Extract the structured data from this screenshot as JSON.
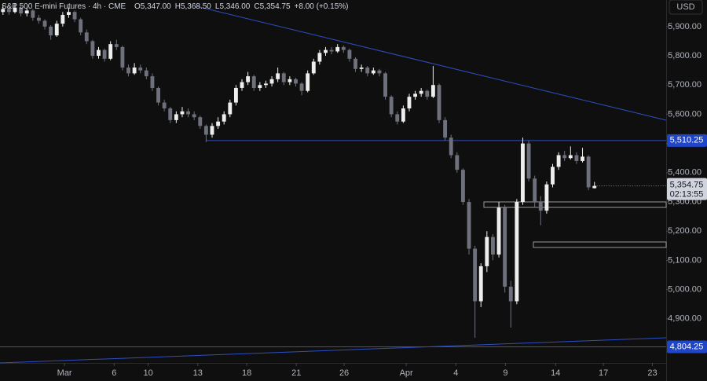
{
  "chart_data": {
    "type": "candlestick",
    "title": "S&P 500 E-mini Futures · 4h · CME",
    "ohlc_header": [
      {
        "key": "O",
        "text": "5,347.00"
      },
      {
        "key": "H",
        "text": "5,368.50"
      },
      {
        "key": "L",
        "text": "5,346.00"
      },
      {
        "key": "C",
        "text": "5,354.75"
      }
    ],
    "change": "+8.00 (+0.15%)",
    "currency": "USD",
    "up_color": "#eeeeee",
    "down_color": "#6e717b",
    "candles": [
      [
        5950,
        5975,
        5940,
        5960
      ],
      [
        5960,
        5970,
        5940,
        5950
      ],
      [
        5950,
        5980,
        5945,
        5965
      ],
      [
        5965,
        5970,
        5935,
        5945
      ],
      [
        5945,
        5965,
        5935,
        5955
      ],
      [
        5955,
        5960,
        5920,
        5930
      ],
      [
        5930,
        5940,
        5910,
        5920
      ],
      [
        5920,
        5925,
        5890,
        5900
      ],
      [
        5900,
        5905,
        5855,
        5870
      ],
      [
        5870,
        5920,
        5865,
        5910
      ],
      [
        5910,
        5950,
        5900,
        5940
      ],
      [
        5940,
        5965,
        5930,
        5950
      ],
      [
        5950,
        5955,
        5915,
        5925
      ],
      [
        5925,
        5930,
        5870,
        5880
      ],
      [
        5880,
        5890,
        5840,
        5850
      ],
      [
        5850,
        5855,
        5790,
        5800
      ],
      [
        5800,
        5830,
        5790,
        5820
      ],
      [
        5820,
        5825,
        5780,
        5790
      ],
      [
        5790,
        5850,
        5785,
        5840
      ],
      [
        5840,
        5855,
        5820,
        5830
      ],
      [
        5830,
        5835,
        5750,
        5760
      ],
      [
        5760,
        5770,
        5730,
        5740
      ],
      [
        5740,
        5775,
        5735,
        5760
      ],
      [
        5760,
        5770,
        5740,
        5750
      ],
      [
        5750,
        5760,
        5720,
        5730
      ],
      [
        5730,
        5740,
        5680,
        5690
      ],
      [
        5690,
        5695,
        5630,
        5640
      ],
      [
        5640,
        5650,
        5610,
        5620
      ],
      [
        5620,
        5625,
        5570,
        5580
      ],
      [
        5580,
        5610,
        5570,
        5600
      ],
      [
        5600,
        5625,
        5590,
        5610
      ],
      [
        5610,
        5620,
        5590,
        5600
      ],
      [
        5600,
        5610,
        5580,
        5590
      ],
      [
        5590,
        5595,
        5550,
        5560
      ],
      [
        5560,
        5565,
        5505,
        5530
      ],
      [
        5530,
        5570,
        5520,
        5560
      ],
      [
        5560,
        5590,
        5550,
        5575
      ],
      [
        5575,
        5610,
        5565,
        5600
      ],
      [
        5600,
        5650,
        5590,
        5640
      ],
      [
        5640,
        5700,
        5630,
        5690
      ],
      [
        5690,
        5720,
        5680,
        5710
      ],
      [
        5710,
        5745,
        5700,
        5730
      ],
      [
        5730,
        5735,
        5680,
        5690
      ],
      [
        5690,
        5710,
        5680,
        5700
      ],
      [
        5700,
        5715,
        5690,
        5705
      ],
      [
        5705,
        5730,
        5695,
        5720
      ],
      [
        5720,
        5760,
        5710,
        5740
      ],
      [
        5740,
        5745,
        5700,
        5710
      ],
      [
        5710,
        5730,
        5700,
        5720
      ],
      [
        5720,
        5725,
        5695,
        5705
      ],
      [
        5705,
        5710,
        5665,
        5680
      ],
      [
        5680,
        5750,
        5675,
        5740
      ],
      [
        5740,
        5790,
        5735,
        5780
      ],
      [
        5780,
        5820,
        5770,
        5810
      ],
      [
        5810,
        5830,
        5800,
        5820
      ],
      [
        5820,
        5830,
        5805,
        5815
      ],
      [
        5815,
        5840,
        5810,
        5830
      ],
      [
        5830,
        5835,
        5810,
        5820
      ],
      [
        5820,
        5825,
        5780,
        5790
      ],
      [
        5790,
        5795,
        5745,
        5755
      ],
      [
        5755,
        5770,
        5745,
        5760
      ],
      [
        5760,
        5765,
        5730,
        5740
      ],
      [
        5740,
        5760,
        5735,
        5750
      ],
      [
        5750,
        5755,
        5730,
        5740
      ],
      [
        5740,
        5745,
        5650,
        5660
      ],
      [
        5660,
        5665,
        5590,
        5600
      ],
      [
        5600,
        5610,
        5565,
        5575
      ],
      [
        5575,
        5630,
        5570,
        5620
      ],
      [
        5620,
        5670,
        5610,
        5660
      ],
      [
        5660,
        5680,
        5650,
        5670
      ],
      [
        5670,
        5690,
        5660,
        5680
      ],
      [
        5680,
        5685,
        5650,
        5660
      ],
      [
        5660,
        5765,
        5655,
        5700
      ],
      [
        5700,
        5705,
        5570,
        5580
      ],
      [
        5580,
        5590,
        5510,
        5520
      ],
      [
        5520,
        5530,
        5450,
        5460
      ],
      [
        5460,
        5470,
        5400,
        5410
      ],
      [
        5410,
        5415,
        5290,
        5300
      ],
      [
        5300,
        5310,
        5120,
        5140
      ],
      [
        5140,
        5150,
        4835,
        4960
      ],
      [
        4960,
        5090,
        4940,
        5080
      ],
      [
        5080,
        5200,
        5060,
        5180
      ],
      [
        5180,
        5190,
        5100,
        5120
      ],
      [
        5120,
        5300,
        5110,
        5280
      ],
      [
        5280,
        5290,
        4990,
        5010
      ],
      [
        5010,
        5030,
        4870,
        4960
      ],
      [
        4960,
        5310,
        4950,
        5300
      ],
      [
        5300,
        5520,
        5290,
        5500
      ],
      [
        5500,
        5510,
        5370,
        5380
      ],
      [
        5380,
        5390,
        5280,
        5300
      ],
      [
        5300,
        5320,
        5220,
        5270
      ],
      [
        5270,
        5370,
        5260,
        5360
      ],
      [
        5360,
        5430,
        5350,
        5420
      ],
      [
        5420,
        5470,
        5410,
        5460
      ],
      [
        5460,
        5475,
        5440,
        5450
      ],
      [
        5450,
        5490,
        5445,
        5460
      ],
      [
        5460,
        5470,
        5430,
        5440
      ],
      [
        5440,
        5485,
        5435,
        5455
      ],
      [
        5455,
        5460,
        5340,
        5350
      ],
      [
        5347,
        5368.5,
        5346,
        5354.75
      ]
    ],
    "xlim": [
      -0.5,
      111
    ],
    "xticks": [
      {
        "value": 10.3,
        "label": "Mar"
      },
      {
        "value": 18.6,
        "label": "6"
      },
      {
        "value": 24.3,
        "label": "10"
      },
      {
        "value": 32.6,
        "label": "13"
      },
      {
        "value": 40.8,
        "label": "18"
      },
      {
        "value": 49.1,
        "label": "21"
      },
      {
        "value": 57.1,
        "label": "26"
      },
      {
        "value": 67.5,
        "label": "Apr"
      },
      {
        "value": 75.8,
        "label": "4"
      },
      {
        "value": 84.1,
        "label": "9"
      },
      {
        "value": 92.5,
        "label": "14"
      },
      {
        "value": 100.5,
        "label": "17"
      },
      {
        "value": 108.7,
        "label": "23"
      }
    ],
    "ylim": [
      4749,
      5991
    ],
    "yticks": [
      {
        "value": 4900,
        "label": "4,900.00"
      },
      {
        "value": 5000,
        "label": "5,000.00"
      },
      {
        "value": 5100,
        "label": "5,100.00"
      },
      {
        "value": 5200,
        "label": "5,200.00"
      },
      {
        "value": 5300,
        "label": "5,300.00"
      },
      {
        "value": 5400,
        "label": "5,400.00"
      },
      {
        "value": 5500,
        "label": "5,500.00"
      },
      {
        "value": 5600,
        "label": "5,600.00"
      },
      {
        "value": 5700,
        "label": "5,700.00"
      },
      {
        "value": 5800,
        "label": "5,800.00"
      },
      {
        "value": 5900,
        "label": "5,900.00"
      }
    ],
    "price_levels": [
      {
        "value": 5510.25,
        "label": "5,510.25"
      },
      {
        "value": 4804.25,
        "label": "4,804.25"
      }
    ],
    "last_price": {
      "value": 5354.75,
      "label": "5,354.75",
      "countdown": "02:13:55"
    }
  }
}
